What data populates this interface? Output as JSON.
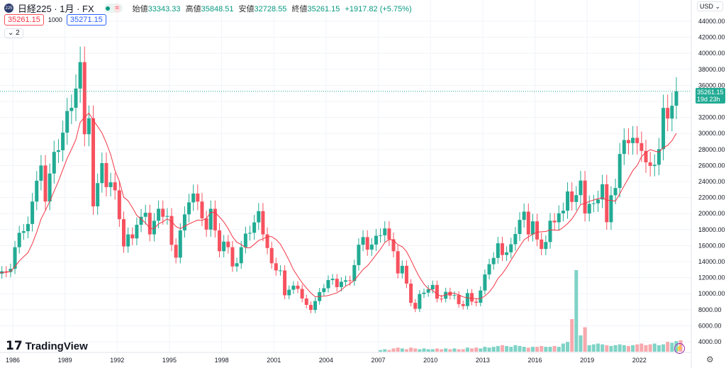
{
  "header": {
    "symbol_badge": "225",
    "title": "日経225 · 1月 · FX",
    "open_label": "始値",
    "open": "33343.33",
    "high_label": "高値",
    "high": "35848.51",
    "low_label": "安値",
    "low": "32728.55",
    "close_label": "終値",
    "close": "35261.15",
    "change": "+1917.82 (+5.75%)",
    "bid": "35261.15",
    "spread": "1000",
    "ask": "35271.15",
    "indicators_toggle": "2",
    "eq_icon": "≈"
  },
  "currency": "USD",
  "last_price": {
    "value": "35261.15",
    "countdown": "19d 23h"
  },
  "logo_text": "TradingView",
  "colors": {
    "up": "#22ab94",
    "down": "#f7525f",
    "ma": "#f23645",
    "last": "#22ab94",
    "vol_up": "#7fd3c6",
    "vol_down": "#f7a9ae"
  },
  "chart_data": {
    "type": "candlestick",
    "title": "日経225 · 1月 · FX",
    "interval_note": "quarterly approximation of monthly candles",
    "start_year": 1985,
    "ylim": [
      4000,
      44000
    ],
    "yticks": [
      "44000.00",
      "42000.00",
      "40000.00",
      "38000.00",
      "36000.00",
      "34000.00",
      "32000.00",
      "30000.00",
      "28000.00",
      "26000.00",
      "24000.00",
      "22000.00",
      "20000.00",
      "18000.00",
      "16000.00",
      "14000.00",
      "12000.00",
      "10000.00",
      "8000.00",
      "6000.00",
      "4000.00"
    ],
    "xticks": [
      "1986",
      "1989",
      "1992",
      "1995",
      "1998",
      "2001",
      "2004",
      "2007",
      "2010",
      "2013",
      "2016",
      "2019",
      "2022"
    ],
    "grid": true,
    "ma_period": 8,
    "closes": [
      12500,
      12800,
      12700,
      13100,
      15800,
      17600,
      17800,
      18700,
      21500,
      24100,
      26000,
      21500,
      25000,
      27700,
      27900,
      30100,
      32800,
      33200,
      35600,
      38900,
      29900,
      31900,
      20900,
      23800,
      26300,
      23300,
      23900,
      22900,
      19300,
      15900,
      17400,
      16900,
      18600,
      19600,
      20100,
      17400,
      19100,
      20600,
      19600,
      19700,
      16100,
      14500,
      17900,
      19900,
      21400,
      22500,
      21500,
      19400,
      18000,
      20600,
      17900,
      15300,
      16500,
      15800,
      13400,
      13800,
      15800,
      17500,
      17600,
      18900,
      20300,
      17400,
      15700,
      13800,
      12900,
      12900,
      9800,
      10500,
      11000,
      10600,
      9400,
      8600,
      7970,
      9080,
      10200,
      10680,
      11700,
      11860,
      10820,
      11490,
      11670,
      11580,
      13570,
      16110,
      17060,
      15500,
      16130,
      17230,
      17290,
      18140,
      16790,
      15300,
      12530,
      13480,
      11260,
      8860,
      8110,
      9960,
      10130,
      10550,
      11090,
      9380,
      9370,
      10230,
      9760,
      9820,
      8700,
      8460,
      10080,
      9010,
      8870,
      10400,
      12400,
      13680,
      14460,
      16290,
      14830,
      15160,
      16170,
      17450,
      19210,
      20240,
      17390,
      19030,
      16760,
      15580,
      16450,
      19110,
      18910,
      20030,
      20360,
      22760,
      21450,
      22300,
      24120,
      20010,
      21210,
      21280,
      21760,
      23660,
      18920,
      22290,
      23190,
      27440,
      29180,
      28790,
      29450,
      28790,
      27820,
      26390,
      25940,
      26090,
      28040,
      33190,
      31860,
      33460,
      35261
    ],
    "volume_start_index": 88,
    "volume": [
      2,
      3,
      2,
      4,
      5,
      4,
      3,
      5,
      4,
      3,
      4,
      3,
      3,
      4,
      3,
      4,
      3,
      4,
      3,
      3,
      5,
      4,
      5,
      4,
      6,
      5,
      6,
      7,
      8,
      7,
      6,
      8,
      7,
      6,
      5,
      6,
      6,
      7,
      6,
      6,
      7,
      6,
      10,
      12,
      40,
      100,
      20,
      30,
      8,
      9,
      10,
      9,
      8,
      7,
      8,
      9,
      8,
      7,
      8,
      9,
      10,
      8,
      9,
      10,
      8,
      9,
      12,
      11,
      13,
      14
    ]
  }
}
